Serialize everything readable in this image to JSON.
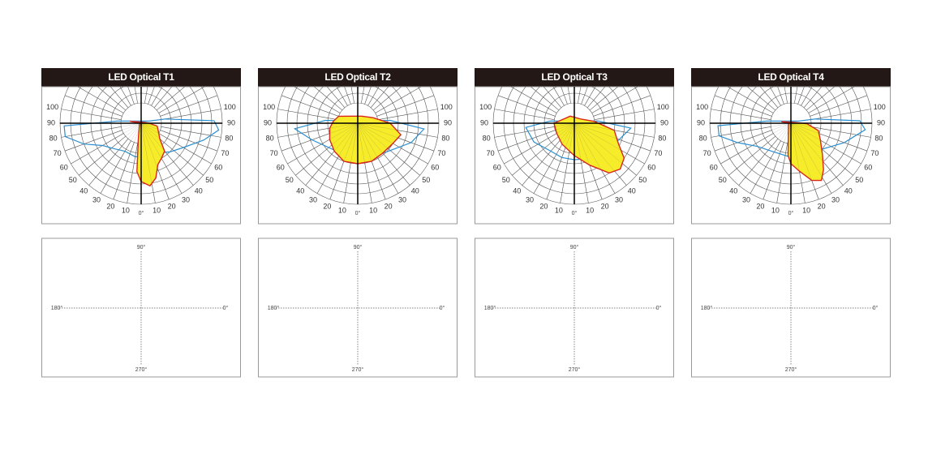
{
  "panels": [
    {
      "title": "LED Optical T1",
      "polar": {
        "left_labels": [
          "100",
          "90",
          "80",
          "70",
          "60",
          "50",
          "40",
          "30",
          "20",
          "10"
        ],
        "center_label": "0°",
        "right_labels": [
          "10",
          "20",
          "30",
          "40",
          "50",
          "60",
          "70",
          "80",
          "90",
          "100"
        ]
      },
      "isolux": {
        "top": "90°",
        "left": "180°",
        "right": "0°",
        "bottom": "270°"
      }
    },
    {
      "title": "LED Optical T2",
      "polar": {
        "left_labels": [
          "100",
          "90",
          "80",
          "70",
          "60",
          "50",
          "40",
          "30",
          "20",
          "10"
        ],
        "center_label": "0°",
        "right_labels": [
          "10",
          "20",
          "30",
          "40",
          "50",
          "60",
          "70",
          "80",
          "90",
          "100"
        ]
      },
      "isolux": {
        "top": "90°",
        "left": "180°",
        "right": "0°",
        "bottom": "270°"
      }
    },
    {
      "title": "LED Optical T3",
      "polar": {
        "left_labels": [
          "100",
          "90",
          "80",
          "70",
          "60",
          "50",
          "40",
          "30",
          "20",
          "10"
        ],
        "center_label": "0°",
        "right_labels": [
          "10",
          "20",
          "30",
          "40",
          "50",
          "60",
          "70",
          "80",
          "90",
          "100"
        ]
      },
      "isolux": {
        "top": "90°",
        "left": "180°",
        "right": "0°",
        "bottom": "270°"
      }
    },
    {
      "title": "LED Optical T4",
      "polar": {
        "left_labels": [
          "100",
          "90",
          "80",
          "70",
          "60",
          "50",
          "40",
          "30",
          "20",
          "10"
        ],
        "center_label": "0°",
        "right_labels": [
          "10",
          "20",
          "30",
          "40",
          "50",
          "60",
          "70",
          "80",
          "90",
          "100"
        ]
      },
      "isolux": {
        "top": "90°",
        "left": "180°",
        "right": "0°",
        "bottom": "270°"
      }
    }
  ]
}
